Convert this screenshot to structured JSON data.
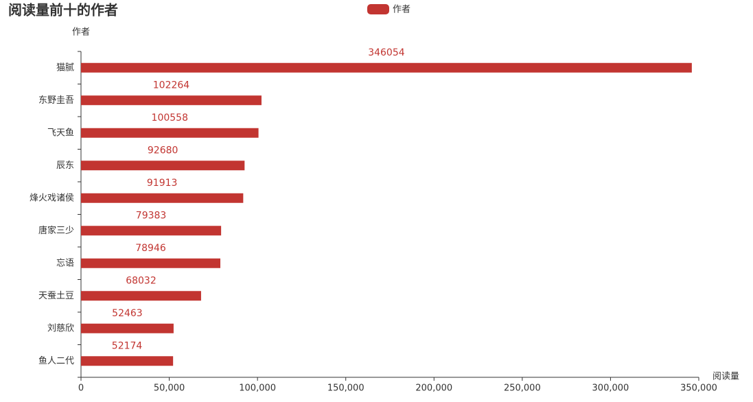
{
  "chart_data": {
    "type": "bar",
    "orientation": "horizontal",
    "title": "阅读量前十的作者",
    "y_axis_label": "作者",
    "x_axis_label": "阅读量",
    "categories": [
      "猫腻",
      "东野圭吾",
      "飞天鱼",
      "辰东",
      "烽火戏诸侯",
      "唐家三少",
      "忘语",
      "天蚕土豆",
      "刘慈欣",
      "鱼人二代"
    ],
    "series": [
      {
        "name": "作者",
        "color": "#c23531",
        "values": [
          346054,
          102264,
          100558,
          92680,
          91913,
          79383,
          78946,
          68032,
          52463,
          52174
        ]
      }
    ],
    "xlim": [
      0,
      350000
    ],
    "xticks": [
      0,
      {
        "value": 50000,
        "label": "50,000"
      },
      {
        "value": 100000,
        "label": "100,000"
      },
      {
        "value": 150000,
        "label": "150,000"
      },
      {
        "value": 200000,
        "label": "200,000"
      },
      {
        "value": 250000,
        "label": "250,000"
      },
      {
        "value": 300000,
        "label": "300,000"
      },
      {
        "value": 350000,
        "label": "350,000"
      }
    ],
    "grid": false,
    "legend": "top"
  }
}
